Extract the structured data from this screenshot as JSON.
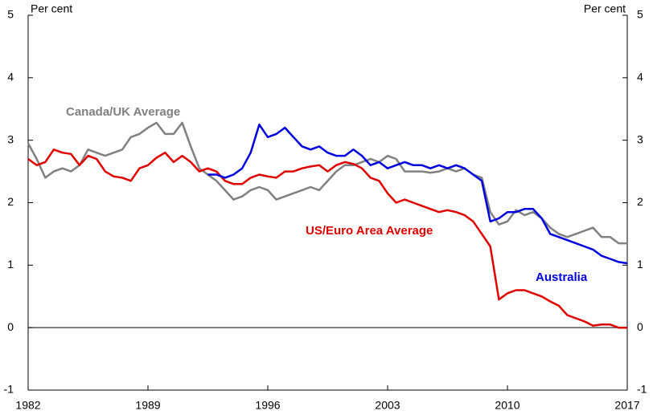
{
  "chart_data": {
    "type": "line",
    "y_label": "Per cent",
    "y2_label": "Per cent",
    "xlim": [
      1982,
      2017
    ],
    "xticks": [
      1982,
      1989,
      1996,
      2003,
      2010,
      2017
    ],
    "ylim": [
      -1,
      5
    ],
    "yticks": [
      -1,
      0,
      1,
      2,
      3,
      4,
      5
    ],
    "y2lim": [
      -1,
      5
    ],
    "y2ticks": [
      -1,
      0,
      1,
      2,
      3,
      4,
      5
    ],
    "x": [
      1982,
      1982.5,
      1983,
      1983.5,
      1984,
      1984.5,
      1985,
      1985.5,
      1986,
      1986.5,
      1987,
      1987.5,
      1988,
      1988.5,
      1989,
      1989.5,
      1990,
      1990.5,
      1991,
      1991.5,
      1992,
      1992.5,
      1993,
      1993.5,
      1994,
      1994.5,
      1995,
      1995.5,
      1996,
      1996.5,
      1997,
      1997.5,
      1998,
      1998.5,
      1999,
      1999.5,
      2000,
      2000.5,
      2001,
      2001.5,
      2002,
      2002.5,
      2003,
      2003.5,
      2004,
      2004.5,
      2005,
      2005.5,
      2006,
      2006.5,
      2007,
      2007.5,
      2008,
      2008.5,
      2009,
      2009.5,
      2010,
      2010.5,
      2011,
      2011.5,
      2012,
      2012.5,
      2013,
      2013.5,
      2014,
      2014.5,
      2015,
      2015.5,
      2016,
      2016.5,
      2017
    ],
    "series": [
      {
        "name": "Canada/UK Average",
        "color": "#808080",
        "values": [
          2.95,
          2.7,
          2.4,
          2.5,
          2.55,
          2.5,
          2.6,
          2.85,
          2.8,
          2.75,
          2.8,
          2.85,
          3.05,
          3.1,
          3.2,
          3.28,
          3.1,
          3.1,
          3.28,
          2.9,
          2.55,
          2.45,
          2.35,
          2.2,
          2.05,
          2.1,
          2.2,
          2.25,
          2.2,
          2.05,
          2.1,
          2.15,
          2.2,
          2.25,
          2.2,
          2.35,
          2.5,
          2.6,
          2.6,
          2.65,
          2.7,
          2.65,
          2.75,
          2.7,
          2.5,
          2.5,
          2.5,
          2.48,
          2.5,
          2.55,
          2.5,
          2.55,
          2.45,
          2.4,
          1.85,
          1.65,
          1.7,
          1.88,
          1.8,
          1.85,
          1.75,
          1.6,
          1.5,
          1.45,
          1.5,
          1.55,
          1.6,
          1.45,
          1.45,
          1.35,
          1.35
        ]
      },
      {
        "name": "US/Euro Area Average",
        "color": "#e00000",
        "values": [
          2.7,
          2.6,
          2.65,
          2.85,
          2.8,
          2.78,
          2.6,
          2.75,
          2.7,
          2.5,
          2.42,
          2.4,
          2.35,
          2.55,
          2.6,
          2.72,
          2.8,
          2.65,
          2.75,
          2.65,
          2.5,
          2.55,
          2.5,
          2.35,
          2.3,
          2.3,
          2.4,
          2.45,
          2.42,
          2.4,
          2.5,
          2.5,
          2.55,
          2.58,
          2.6,
          2.5,
          2.6,
          2.65,
          2.62,
          2.55,
          2.4,
          2.35,
          2.15,
          2.0,
          2.05,
          2.0,
          1.95,
          1.9,
          1.85,
          1.88,
          1.85,
          1.8,
          1.7,
          1.5,
          1.3,
          0.45,
          0.55,
          0.6,
          0.6,
          0.55,
          0.5,
          0.42,
          0.35,
          0.2,
          0.15,
          0.1,
          0.03,
          0.05,
          0.05,
          0.0,
          0.0
        ]
      },
      {
        "name": "Australia",
        "color": "#0000e0",
        "values": [
          null,
          null,
          null,
          null,
          null,
          null,
          null,
          null,
          null,
          null,
          null,
          null,
          null,
          null,
          null,
          null,
          null,
          null,
          null,
          null,
          null,
          2.45,
          2.45,
          2.4,
          2.45,
          2.55,
          2.8,
          3.25,
          3.05,
          3.1,
          3.2,
          3.05,
          2.9,
          2.85,
          2.9,
          2.8,
          2.75,
          2.75,
          2.85,
          2.75,
          2.6,
          2.65,
          2.55,
          2.6,
          2.65,
          2.6,
          2.6,
          2.55,
          2.6,
          2.55,
          2.6,
          2.55,
          2.45,
          2.35,
          1.7,
          1.75,
          1.85,
          1.85,
          1.9,
          1.9,
          1.75,
          1.5,
          1.45,
          1.4,
          1.35,
          1.3,
          1.25,
          1.15,
          1.1,
          1.05,
          1.03
        ]
      }
    ]
  }
}
